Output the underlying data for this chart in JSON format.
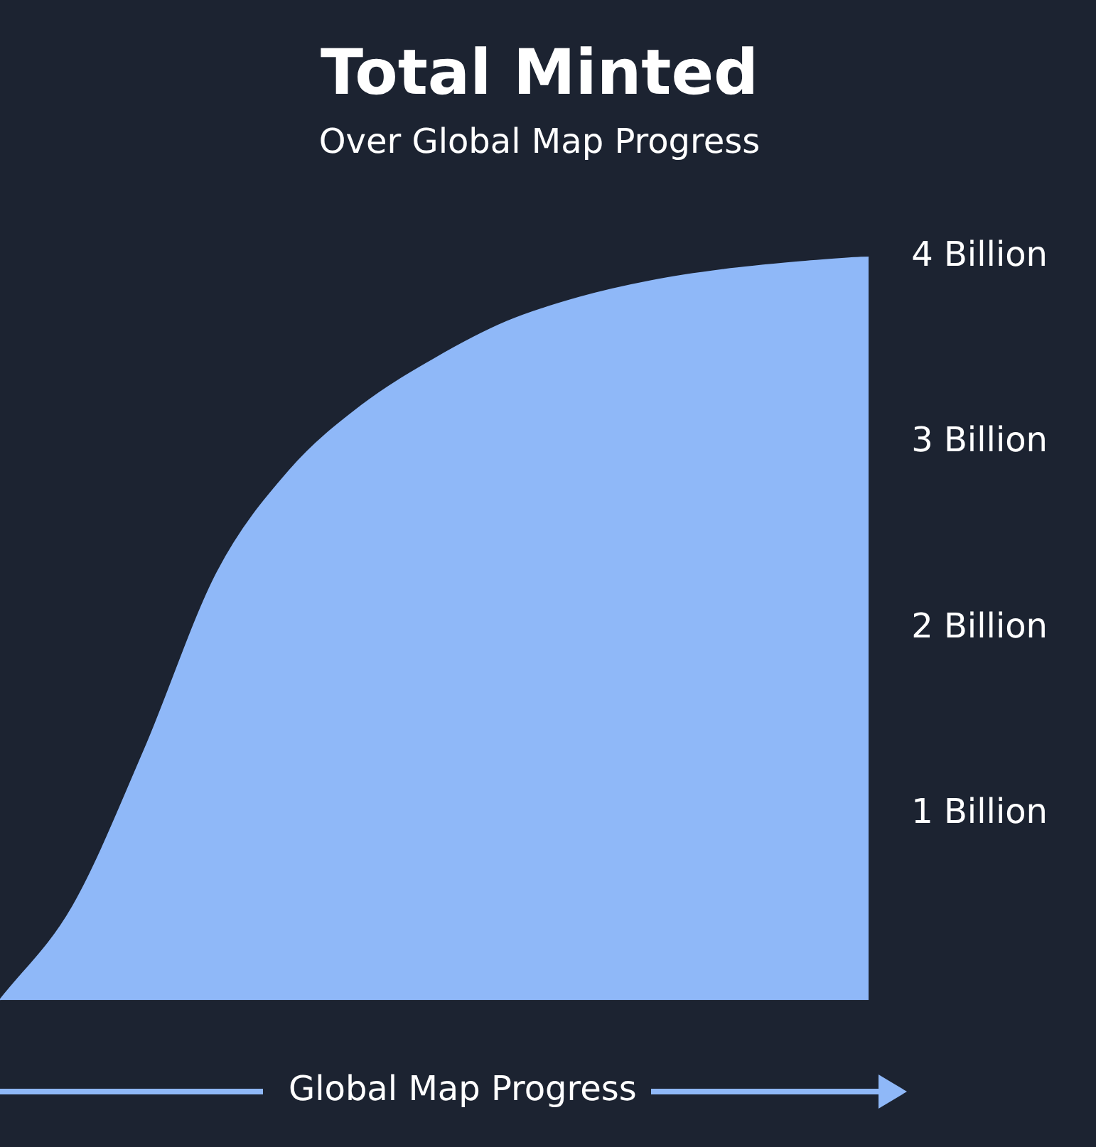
{
  "chart_data": {
    "type": "area",
    "title": "Total Minted",
    "subtitle": "Over Global Map Progress",
    "xlabel": "Global Map Progress",
    "categories": [
      null,
      null,
      null,
      null,
      null,
      null,
      null,
      null,
      null,
      null,
      null,
      null,
      null
    ],
    "values": [
      0,
      0.5,
      1.35,
      2.3,
      2.85,
      3.2,
      3.45,
      3.65,
      3.78,
      3.87,
      3.93,
      3.97,
      4.0
    ],
    "color": "#8fb8f8",
    "ylim": [
      0,
      4
    ],
    "yticks": [
      {
        "value": 1,
        "label": "1 Billion"
      },
      {
        "value": 2,
        "label": "2 Billion"
      },
      {
        "value": 3,
        "label": "3 Billion"
      },
      {
        "value": 4,
        "label": "4 Billion"
      }
    ],
    "grid": false,
    "legend": false
  }
}
